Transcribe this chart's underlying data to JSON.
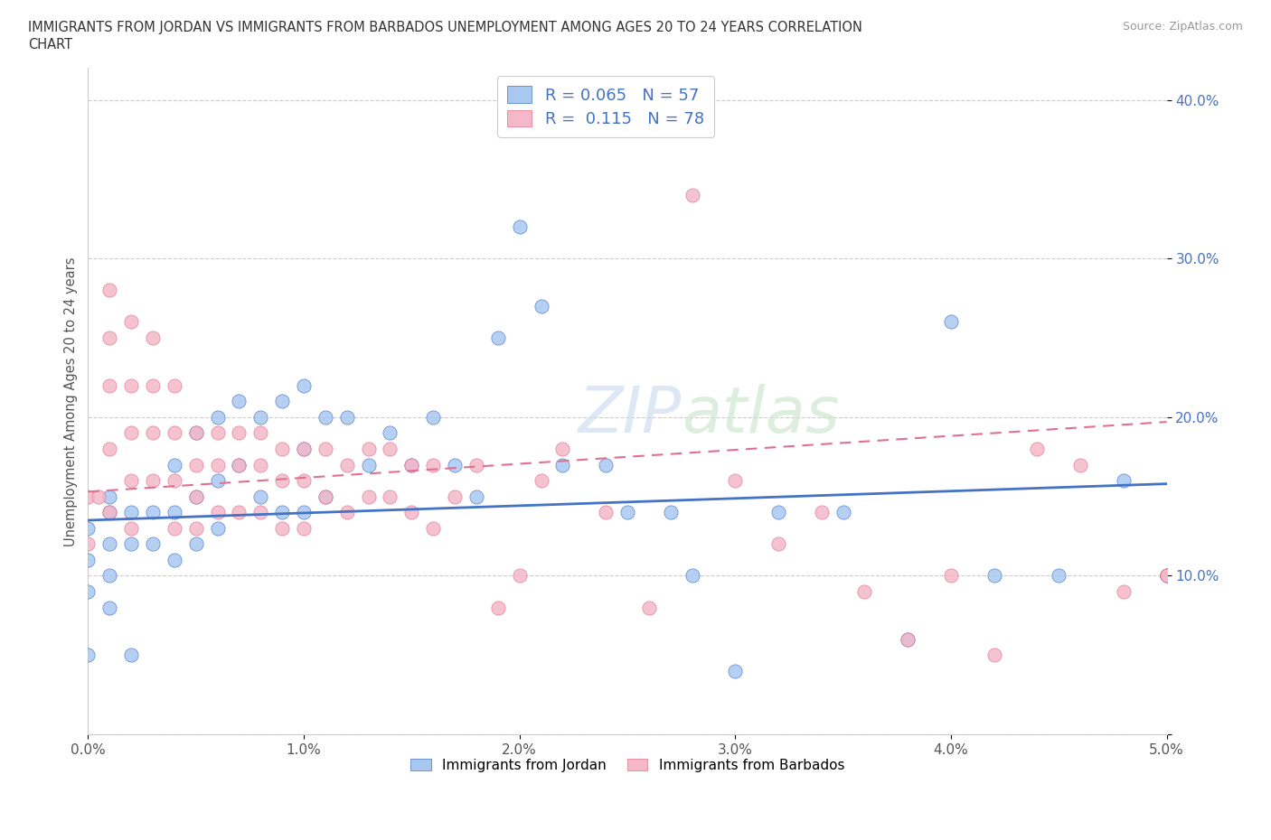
{
  "title_line1": "IMMIGRANTS FROM JORDAN VS IMMIGRANTS FROM BARBADOS UNEMPLOYMENT AMONG AGES 20 TO 24 YEARS CORRELATION",
  "title_line2": "CHART",
  "source": "Source: ZipAtlas.com",
  "ylabel": "Unemployment Among Ages 20 to 24 years",
  "xlabel_blue": "Immigrants from Jordan",
  "xlabel_pink": "Immigrants from Barbados",
  "watermark": "ZIPatlas",
  "xlim": [
    0.0,
    0.05
  ],
  "ylim": [
    0.0,
    0.42
  ],
  "xticks": [
    0.0,
    0.01,
    0.02,
    0.03,
    0.04,
    0.05
  ],
  "xticklabels": [
    "0.0%",
    "1.0%",
    "2.0%",
    "3.0%",
    "4.0%",
    "5.0%"
  ],
  "yticks": [
    0.0,
    0.1,
    0.2,
    0.3,
    0.4
  ],
  "yticklabels": [
    "",
    "10.0%",
    "20.0%",
    "30.0%",
    "40.0%"
  ],
  "R_blue": 0.065,
  "N_blue": 57,
  "R_pink": 0.115,
  "N_pink": 78,
  "color_blue": "#a8c8f0",
  "color_pink": "#f4b8c8",
  "color_blue_text": "#4472c4",
  "line_blue": "#4472c4",
  "line_pink": "#e07090",
  "blue_x": [
    0.0,
    0.0,
    0.0,
    0.0,
    0.001,
    0.001,
    0.001,
    0.001,
    0.001,
    0.002,
    0.002,
    0.002,
    0.003,
    0.003,
    0.004,
    0.004,
    0.004,
    0.005,
    0.005,
    0.005,
    0.006,
    0.006,
    0.006,
    0.007,
    0.007,
    0.008,
    0.008,
    0.009,
    0.009,
    0.01,
    0.01,
    0.01,
    0.011,
    0.011,
    0.012,
    0.013,
    0.014,
    0.015,
    0.016,
    0.017,
    0.018,
    0.019,
    0.02,
    0.021,
    0.022,
    0.024,
    0.025,
    0.027,
    0.028,
    0.03,
    0.032,
    0.035,
    0.038,
    0.04,
    0.042,
    0.045,
    0.048
  ],
  "blue_y": [
    0.13,
    0.11,
    0.09,
    0.05,
    0.15,
    0.14,
    0.12,
    0.1,
    0.08,
    0.14,
    0.12,
    0.05,
    0.14,
    0.12,
    0.17,
    0.14,
    0.11,
    0.19,
    0.15,
    0.12,
    0.2,
    0.16,
    0.13,
    0.21,
    0.17,
    0.2,
    0.15,
    0.21,
    0.14,
    0.22,
    0.18,
    0.14,
    0.2,
    0.15,
    0.2,
    0.17,
    0.19,
    0.17,
    0.2,
    0.17,
    0.15,
    0.25,
    0.32,
    0.27,
    0.17,
    0.17,
    0.14,
    0.14,
    0.1,
    0.04,
    0.14,
    0.14,
    0.06,
    0.26,
    0.1,
    0.1,
    0.16
  ],
  "pink_x": [
    0.0,
    0.0,
    0.0005,
    0.001,
    0.001,
    0.001,
    0.001,
    0.001,
    0.002,
    0.002,
    0.002,
    0.002,
    0.002,
    0.003,
    0.003,
    0.003,
    0.003,
    0.004,
    0.004,
    0.004,
    0.004,
    0.005,
    0.005,
    0.005,
    0.005,
    0.006,
    0.006,
    0.006,
    0.007,
    0.007,
    0.007,
    0.008,
    0.008,
    0.008,
    0.009,
    0.009,
    0.009,
    0.01,
    0.01,
    0.01,
    0.011,
    0.011,
    0.012,
    0.012,
    0.013,
    0.013,
    0.014,
    0.014,
    0.015,
    0.015,
    0.016,
    0.016,
    0.017,
    0.018,
    0.019,
    0.02,
    0.021,
    0.022,
    0.024,
    0.026,
    0.028,
    0.03,
    0.032,
    0.034,
    0.036,
    0.038,
    0.04,
    0.042,
    0.044,
    0.046,
    0.048,
    0.05,
    0.05,
    0.05,
    0.05,
    0.05,
    0.05,
    0.05
  ],
  "pink_y": [
    0.15,
    0.12,
    0.15,
    0.28,
    0.25,
    0.22,
    0.18,
    0.14,
    0.26,
    0.22,
    0.19,
    0.16,
    0.13,
    0.25,
    0.22,
    0.19,
    0.16,
    0.22,
    0.19,
    0.16,
    0.13,
    0.19,
    0.17,
    0.15,
    0.13,
    0.19,
    0.17,
    0.14,
    0.19,
    0.17,
    0.14,
    0.19,
    0.17,
    0.14,
    0.18,
    0.16,
    0.13,
    0.18,
    0.16,
    0.13,
    0.18,
    0.15,
    0.17,
    0.14,
    0.18,
    0.15,
    0.18,
    0.15,
    0.17,
    0.14,
    0.17,
    0.13,
    0.15,
    0.17,
    0.08,
    0.1,
    0.16,
    0.18,
    0.14,
    0.08,
    0.34,
    0.16,
    0.12,
    0.14,
    0.09,
    0.06,
    0.1,
    0.05,
    0.18,
    0.17,
    0.09,
    0.1,
    0.1,
    0.1,
    0.1,
    0.1,
    0.1,
    0.1
  ],
  "trend_blue_x0": 0.0,
  "trend_blue_x1": 0.05,
  "trend_blue_y0": 0.135,
  "trend_blue_y1": 0.158,
  "trend_pink_x0": 0.0,
  "trend_pink_x1": 0.05,
  "trend_pink_y0": 0.153,
  "trend_pink_y1": 0.197
}
